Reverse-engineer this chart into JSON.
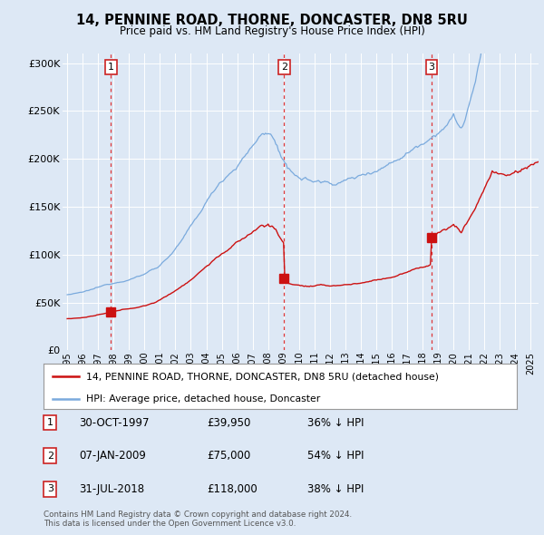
{
  "title": "14, PENNINE ROAD, THORNE, DONCASTER, DN8 5RU",
  "subtitle": "Price paid vs. HM Land Registry's House Price Index (HPI)",
  "background_color": "#dde8f5",
  "plot_bg_color": "#dde8f5",
  "lower_bg_color": "#ffffff",
  "hpi_color": "#7aaadd",
  "price_color": "#cc1111",
  "marker_color": "#cc1111",
  "dashed_color": "#dd2222",
  "ylabel_ticks": [
    "£0",
    "£50K",
    "£100K",
    "£150K",
    "£200K",
    "£250K",
    "£300K"
  ],
  "ylabel_values": [
    0,
    50000,
    100000,
    150000,
    200000,
    250000,
    300000
  ],
  "ylim": [
    0,
    310000
  ],
  "xlim_start": 1994.7,
  "xlim_end": 2025.5,
  "sales": [
    {
      "date_num": 1997.83,
      "price": 39950,
      "label": "1"
    },
    {
      "date_num": 2009.03,
      "price": 75000,
      "label": "2"
    },
    {
      "date_num": 2018.58,
      "price": 118000,
      "label": "3"
    }
  ],
  "table_rows": [
    {
      "num": "1",
      "date": "30-OCT-1997",
      "price": "£39,950",
      "hpi": "36% ↓ HPI"
    },
    {
      "num": "2",
      "date": "07-JAN-2009",
      "price": "£75,000",
      "hpi": "54% ↓ HPI"
    },
    {
      "num": "3",
      "date": "31-JUL-2018",
      "price": "£118,000",
      "hpi": "38% ↓ HPI"
    }
  ],
  "legend_line1": "14, PENNINE ROAD, THORNE, DONCASTER, DN8 5RU (detached house)",
  "legend_line2": "HPI: Average price, detached house, Doncaster",
  "footnote": "Contains HM Land Registry data © Crown copyright and database right 2024.\nThis data is licensed under the Open Government Licence v3.0."
}
